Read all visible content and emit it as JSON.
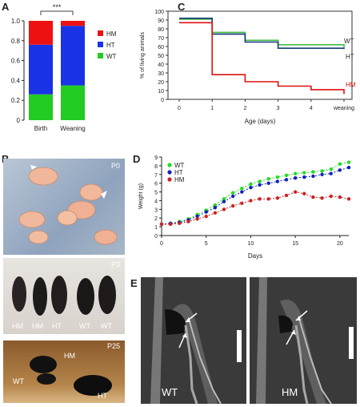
{
  "figure": {
    "panels": {
      "A": {
        "letter": "A"
      },
      "B": {
        "letter": "B"
      },
      "C": {
        "letter": "C"
      },
      "D": {
        "letter": "D"
      },
      "E": {
        "letter": "E"
      }
    }
  },
  "chart_data": [
    {
      "id": "A",
      "type": "bar",
      "stacked": true,
      "categories": [
        "Birth",
        "Weaning"
      ],
      "series": [
        {
          "name": "WT",
          "color": "#22cc22",
          "values": [
            0.26,
            0.35
          ]
        },
        {
          "name": "HT",
          "color": "#1a33e6",
          "values": [
            0.5,
            0.6
          ]
        },
        {
          "name": "HM",
          "color": "#ee1111",
          "values": [
            0.24,
            0.05
          ]
        }
      ],
      "legend_order": [
        "HM",
        "HT",
        "WT"
      ],
      "ylim": [
        0,
        1.0
      ],
      "yticks": [
        "0",
        "0.2",
        "0.4",
        "0.6",
        "0.8",
        "1.0"
      ],
      "significance": "***",
      "legend_placement": "right"
    },
    {
      "id": "C",
      "type": "line",
      "step": true,
      "xlabel": "Age (days)",
      "ylabel": "% of living animals",
      "x_ticks": [
        "0",
        "1",
        "2",
        "3",
        "4",
        "weaning"
      ],
      "ylim": [
        0,
        100
      ],
      "yticks": [
        "0",
        "10",
        "20",
        "30",
        "40",
        "50",
        "60",
        "70",
        "80",
        "90",
        "100"
      ],
      "series": [
        {
          "name": "WT",
          "color": "#44bb44",
          "values": [
            91,
            76,
            67,
            62,
            62,
            59
          ]
        },
        {
          "name": "HT",
          "color": "#1a3a7a",
          "values": [
            92,
            74,
            65,
            58,
            58,
            57
          ]
        },
        {
          "name": "HM",
          "color": "#dd1111",
          "values": [
            87,
            28,
            20,
            15,
            11,
            6
          ]
        }
      ]
    },
    {
      "id": "D",
      "type": "line",
      "xlabel": "Days",
      "ylabel": "Weight (g)",
      "xlim": [
        0,
        21
      ],
      "x_ticks": [
        "0",
        "5",
        "10",
        "15",
        "20"
      ],
      "ylim": [
        0,
        9
      ],
      "yticks": [
        "0",
        "1",
        "2",
        "3",
        "4",
        "5",
        "6",
        "7",
        "8",
        "9"
      ],
      "x": [
        0,
        1,
        2,
        3,
        4,
        5,
        6,
        7,
        8,
        9,
        10,
        11,
        12,
        13,
        14,
        15,
        16,
        17,
        18,
        19,
        20,
        21
      ],
      "series": [
        {
          "name": "WT",
          "color": "#22dd22",
          "values": [
            1.3,
            1.4,
            1.6,
            1.9,
            2.4,
            2.9,
            3.5,
            4.2,
            4.9,
            5.4,
            5.9,
            6.2,
            6.5,
            6.7,
            6.9,
            7.1,
            7.2,
            7.3,
            7.4,
            7.6,
            8.2,
            8.4
          ]
        },
        {
          "name": "HT",
          "color": "#1122bb",
          "values": [
            1.3,
            1.4,
            1.5,
            1.8,
            2.2,
            2.7,
            3.2,
            3.9,
            4.5,
            5.0,
            5.5,
            5.8,
            6.0,
            6.2,
            6.4,
            6.6,
            6.7,
            6.8,
            7.0,
            7.1,
            7.5,
            7.8
          ]
        },
        {
          "name": "HM",
          "color": "#cc2222",
          "values": [
            1.3,
            1.3,
            1.4,
            1.6,
            1.9,
            2.2,
            2.6,
            3.0,
            3.4,
            3.7,
            4.0,
            4.2,
            4.2,
            4.3,
            4.6,
            5.0,
            4.8,
            4.4,
            4.3,
            4.5,
            4.4,
            4.2
          ]
        }
      ],
      "legend_placement": "top-left"
    }
  ],
  "photos": {
    "p0": {
      "stage": "P0"
    },
    "p3": {
      "stage": "P3",
      "labels": [
        "HM",
        "HM",
        "HT",
        "WT",
        "WT"
      ]
    },
    "p25": {
      "stage": "P25",
      "labels": [
        "HM",
        "WT",
        "HT"
      ]
    },
    "xray_left": {
      "label": "WT"
    },
    "xray_right": {
      "label": "HM"
    }
  }
}
